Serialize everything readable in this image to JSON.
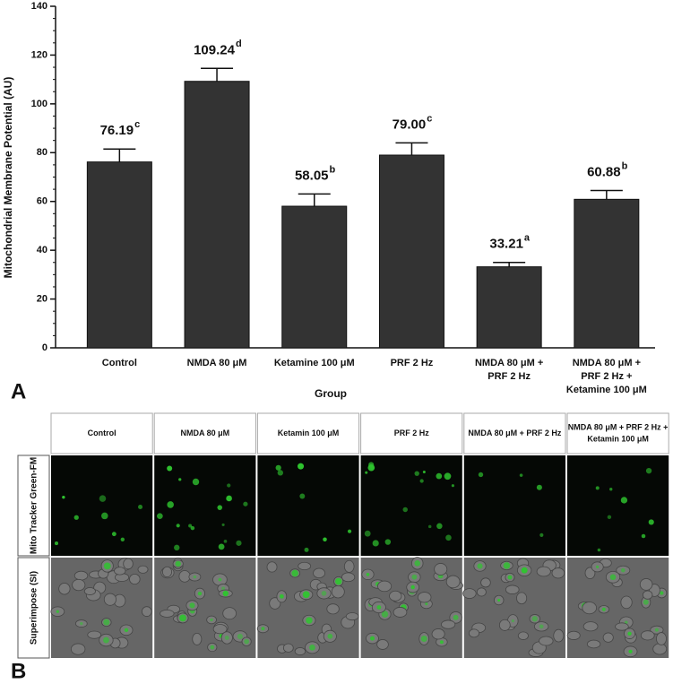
{
  "chart_data": {
    "type": "bar",
    "y_label": "Mitochondrial Membrane Potential (AU)",
    "x_label": "Group",
    "categories": [
      [
        "Control"
      ],
      [
        "NMDA 80 μM"
      ],
      [
        "Ketamine 100 μM"
      ],
      [
        "PRF 2 Hz"
      ],
      [
        "NMDA 80 μM +",
        "PRF 2 Hz"
      ],
      [
        "NMDA 80 μM +",
        "PRF 2 Hz +",
        "Ketamine 100 μM"
      ]
    ],
    "values": [
      76.19,
      109.24,
      58.05,
      79.0,
      33.21,
      60.88
    ],
    "value_labels": [
      "76.19",
      "109.24",
      "58.05",
      "79.00",
      "33.21",
      "60.88"
    ],
    "significance": [
      "c",
      "d",
      "b",
      "c",
      "a",
      "b"
    ],
    "errors": [
      5.3,
      5.3,
      5,
      5,
      1.8,
      3.6
    ],
    "color": "#333333",
    "ylim": [
      0,
      140
    ],
    "yticks": [
      0,
      20,
      40,
      60,
      80,
      100,
      120,
      140
    ]
  },
  "panel_a": "A",
  "panel_b": "B",
  "figure": {
    "columns": [
      [
        "Control"
      ],
      [
        "NMDA 80 μM"
      ],
      [
        "Ketamin 100 μM"
      ],
      [
        "PRF 2 Hz"
      ],
      [
        "NMDA 80 μM + PRF 2 Hz"
      ],
      [
        "NMDA 80 μM + PRF 2 Hz +",
        "Ketamin 100 μM"
      ]
    ],
    "rows": [
      "Mito Tracker Green-FM",
      "Superimpose (SI)"
    ]
  }
}
